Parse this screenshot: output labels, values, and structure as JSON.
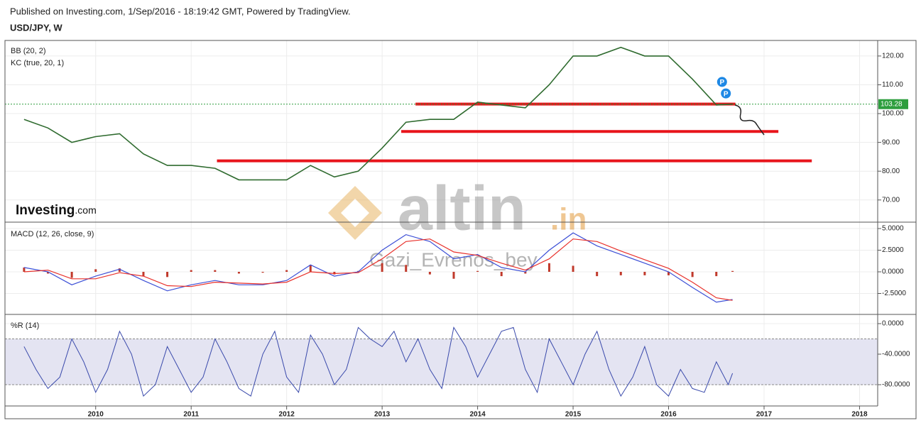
{
  "header": {
    "published": "Published on Investing.com, 1/Sep/2016 - 18:19:42 GMT, Powered by TradingView.",
    "symbol": "USD/JPY, W"
  },
  "watermarks": {
    "logo": "Investing",
    "logo_suffix": ".com",
    "site": "altin",
    "site_suffix": ".in",
    "author": "Gazi_Evrenos_bey"
  },
  "chart_data": [
    {
      "type": "line",
      "indicators": [
        "BB (20, 2)",
        "KC (true, 20, 1)"
      ],
      "color": "#2f6b2f",
      "x": [
        2009.25,
        2009.5,
        2009.75,
        2010,
        2010.25,
        2010.5,
        2010.75,
        2011,
        2011.25,
        2011.5,
        2011.75,
        2012,
        2012.25,
        2012.5,
        2012.75,
        2013,
        2013.25,
        2013.5,
        2013.75,
        2014,
        2014.25,
        2014.5,
        2014.75,
        2015,
        2015.25,
        2015.5,
        2015.75,
        2016,
        2016.25,
        2016.5,
        2016.67
      ],
      "values": [
        98,
        95,
        90,
        92,
        93,
        86,
        82,
        82,
        81,
        77,
        77,
        77,
        82,
        78,
        80,
        88,
        97,
        98,
        98,
        104,
        103,
        102,
        110,
        120,
        120,
        123,
        120,
        120,
        112,
        103,
        103.3
      ],
      "xlim": [
        2009.05,
        2018.19
      ],
      "ylim": [
        62.3,
        125.4
      ],
      "yticks": [
        {
          "value": 70,
          "label": "70.00"
        },
        {
          "value": 80,
          "label": "80.00"
        },
        {
          "value": 90,
          "label": "90.00"
        },
        {
          "value": 100,
          "label": "100.00"
        },
        {
          "value": 110,
          "label": "110.00"
        },
        {
          "value": 120,
          "label": "120.00"
        }
      ],
      "grid": true,
      "current_value": {
        "value": 103.28,
        "label": "103.28",
        "color": "#2e9e3e"
      },
      "levels": [
        {
          "y": 103.3,
          "x": [
            2013.35,
            2016.7
          ],
          "color": "#e8141b"
        },
        {
          "y": 93.8,
          "x": [
            2013.2,
            2017.15
          ],
          "color": "#e8141b"
        },
        {
          "y": 83.6,
          "x": [
            2011.27,
            2017.5
          ],
          "color": "#e8141b"
        }
      ],
      "markers": [
        {
          "x": 2016.56,
          "y": 111,
          "label": "P",
          "color": "#1e88e5"
        },
        {
          "x": 2016.6,
          "y": 107,
          "label": "P",
          "color": "#1e88e5"
        }
      ]
    },
    {
      "type": "macd",
      "title": "MACD (12, 26, close, 9)",
      "x": [
        2009.25,
        2009.5,
        2009.75,
        2010,
        2010.25,
        2010.5,
        2010.75,
        2011,
        2011.25,
        2011.5,
        2011.75,
        2012,
        2012.25,
        2012.5,
        2012.75,
        2013,
        2013.25,
        2013.5,
        2013.75,
        2014,
        2014.25,
        2014.5,
        2014.75,
        2015,
        2015.25,
        2015.5,
        2015.75,
        2016,
        2016.25,
        2016.5,
        2016.67
      ],
      "series": [
        {
          "color": "#3c4fd6",
          "values": [
            0.5,
            0.0,
            -1.5,
            -0.5,
            0.3,
            -1.0,
            -2.2,
            -1.5,
            -1.0,
            -1.5,
            -1.5,
            -1.0,
            0.8,
            -0.5,
            0.0,
            2.5,
            4.3,
            3.5,
            1.5,
            2.0,
            0.5,
            0.0,
            2.5,
            4.5,
            3.0,
            2.0,
            1.0,
            0.0,
            -1.8,
            -3.5,
            -3.2
          ]
        },
        {
          "color": "#e8302a",
          "values": [
            0.0,
            0.2,
            -0.8,
            -0.8,
            -0.1,
            -0.5,
            -1.6,
            -1.7,
            -1.2,
            -1.3,
            -1.4,
            -1.2,
            0.0,
            -0.2,
            -0.1,
            1.5,
            3.5,
            3.8,
            2.3,
            1.9,
            1.0,
            0.2,
            1.5,
            3.8,
            3.5,
            2.4,
            1.4,
            0.4,
            -1.2,
            -3.0,
            -3.3
          ]
        }
      ],
      "histogram": {
        "color": "#c0392b",
        "values": [
          0.5,
          -0.2,
          -0.7,
          0.3,
          0.4,
          -0.5,
          -0.6,
          0.2,
          0.2,
          -0.2,
          -0.1,
          0.2,
          0.8,
          -0.3,
          0.1,
          1.0,
          0.8,
          -0.3,
          -0.8,
          0.1,
          -0.5,
          -0.2,
          1.0,
          0.7,
          -0.5,
          -0.4,
          -0.4,
          -0.4,
          -0.6,
          -0.5,
          0.1
        ]
      },
      "xlim": [
        2009.05,
        2018.19
      ],
      "ylim": [
        -4.92,
        5.74
      ],
      "yticks": [
        {
          "value": -2.5,
          "label": "-2.5000"
        },
        {
          "value": 0,
          "label": "0.0000"
        },
        {
          "value": 2.5,
          "label": "2.5000"
        },
        {
          "value": 5,
          "label": "5.0000"
        }
      ],
      "grid": true
    },
    {
      "type": "oscillator",
      "title": "%R (14)",
      "color": "#3949ab",
      "x": [
        2009.25,
        2009.375,
        2009.5,
        2009.625,
        2009.75,
        2009.875,
        2010,
        2010.125,
        2010.25,
        2010.375,
        2010.5,
        2010.625,
        2010.75,
        2010.875,
        2011,
        2011.125,
        2011.25,
        2011.375,
        2011.5,
        2011.625,
        2011.75,
        2011.875,
        2012,
        2012.125,
        2012.25,
        2012.375,
        2012.5,
        2012.625,
        2012.75,
        2012.875,
        2013,
        2013.125,
        2013.25,
        2013.375,
        2013.5,
        2013.625,
        2013.75,
        2013.875,
        2014,
        2014.125,
        2014.25,
        2014.375,
        2014.5,
        2014.625,
        2014.75,
        2014.875,
        2015,
        2015.125,
        2015.25,
        2015.375,
        2015.5,
        2015.625,
        2015.75,
        2015.875,
        2016,
        2016.125,
        2016.25,
        2016.375,
        2016.5,
        2016.625,
        2016.67
      ],
      "values": [
        -30,
        -60,
        -85,
        -70,
        -20,
        -50,
        -90,
        -60,
        -10,
        -40,
        -95,
        -80,
        -30,
        -60,
        -90,
        -70,
        -20,
        -50,
        -85,
        -95,
        -40,
        -10,
        -70,
        -90,
        -15,
        -40,
        -80,
        -60,
        -5,
        -20,
        -30,
        -10,
        -50,
        -20,
        -60,
        -85,
        -5,
        -30,
        -70,
        -40,
        -10,
        -5,
        -60,
        -90,
        -20,
        -50,
        -80,
        -40,
        -10,
        -60,
        -95,
        -70,
        -30,
        -80,
        -95,
        -60,
        -85,
        -90,
        -50,
        -80,
        -65
      ],
      "band": [
        -20,
        -80
      ],
      "band_color": "#e4e4f2",
      "xlim": [
        2009.05,
        2018.19
      ],
      "ylim": [
        -107.9,
        12.1
      ],
      "xticks": [
        2010,
        2011,
        2012,
        2013,
        2014,
        2015,
        2016,
        2017,
        2018
      ],
      "yticks": [
        {
          "value": -80,
          "label": "-80.0000"
        },
        {
          "value": -40,
          "label": "-40.0000"
        },
        {
          "value": 0,
          "label": "0.0000"
        }
      ],
      "grid": true
    }
  ]
}
